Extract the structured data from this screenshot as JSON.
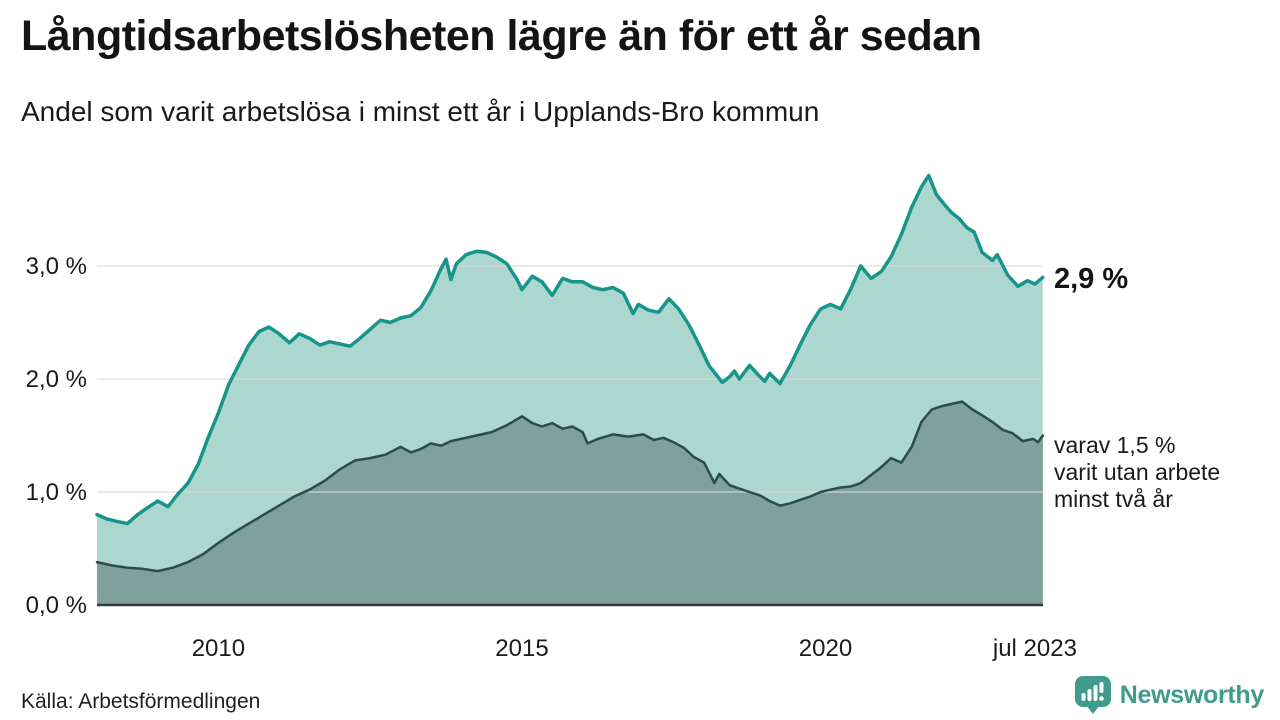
{
  "header": {
    "title": "Långtidsarbetslösheten lägre än för ett år sedan",
    "subtitle": "Andel som varit arbetslösa i minst ett år i Upplands-Bro kommun"
  },
  "annotations": {
    "total_end": "2,9 %",
    "secondary_end_lines": [
      "varav 1,5 %",
      "varit utan arbete",
      "minst två år"
    ]
  },
  "footer": {
    "source": "Källa: Arbetsförmedlingen",
    "brand": "Newsworthy"
  },
  "colors": {
    "total_line": "#17948b",
    "total_fill": "#abd7cf",
    "secondary_line": "#2d4c47",
    "secondary_fill": "#7ea19b",
    "gridline": "#d9d9d9",
    "axis_line": "#3a3a3a",
    "brand_teal": "#3f9c8d",
    "text": "#1a1a1a"
  },
  "chart_data": {
    "type": "area",
    "title": "Långtidsarbetslösheten lägre än för ett år sedan",
    "subtitle": "Andel som varit arbetslösa i minst ett år i Upplands-Bro kommun",
    "xlabel": "",
    "ylabel": "",
    "unit": "%",
    "x_range": [
      2008.0,
      2023.583
    ],
    "y_range": [
      0,
      3.94
    ],
    "grid": true,
    "legend_position": "end-of-line-labels",
    "y_ticks": [
      {
        "label": "0,0 %",
        "value": 0
      },
      {
        "label": "1,0 %",
        "value": 1
      },
      {
        "label": "2,0 %",
        "value": 2
      },
      {
        "label": "3,0 %",
        "value": 3
      }
    ],
    "x_ticks": [
      {
        "label": "2010",
        "year": 2010
      },
      {
        "label": "2015",
        "year": 2015
      },
      {
        "label": "2020",
        "year": 2020
      },
      {
        "label": "jul 2023",
        "year": 2023.45
      }
    ],
    "series": [
      {
        "name": "Andel som varit arbetslösa i minst ett år",
        "end_value": "2,9 %",
        "line_color": "#17948b",
        "fill_color": "#abd7cf",
        "line_width": 3.5,
        "points": [
          [
            2008.0,
            0.8
          ],
          [
            2008.17,
            0.76
          ],
          [
            2008.33,
            0.74
          ],
          [
            2008.5,
            0.72
          ],
          [
            2008.67,
            0.8
          ],
          [
            2008.83,
            0.86
          ],
          [
            2009.0,
            0.92
          ],
          [
            2009.17,
            0.87
          ],
          [
            2009.33,
            0.98
          ],
          [
            2009.5,
            1.08
          ],
          [
            2009.67,
            1.25
          ],
          [
            2009.83,
            1.48
          ],
          [
            2010.0,
            1.7
          ],
          [
            2010.17,
            1.95
          ],
          [
            2010.33,
            2.12
          ],
          [
            2010.5,
            2.3
          ],
          [
            2010.67,
            2.42
          ],
          [
            2010.83,
            2.46
          ],
          [
            2011.0,
            2.4
          ],
          [
            2011.17,
            2.32
          ],
          [
            2011.33,
            2.4
          ],
          [
            2011.5,
            2.36
          ],
          [
            2011.67,
            2.3
          ],
          [
            2011.83,
            2.33
          ],
          [
            2012.0,
            2.31
          ],
          [
            2012.17,
            2.29
          ],
          [
            2012.33,
            2.36
          ],
          [
            2012.5,
            2.44
          ],
          [
            2012.67,
            2.52
          ],
          [
            2012.83,
            2.5
          ],
          [
            2013.0,
            2.54
          ],
          [
            2013.17,
            2.56
          ],
          [
            2013.33,
            2.63
          ],
          [
            2013.5,
            2.78
          ],
          [
            2013.67,
            2.98
          ],
          [
            2013.75,
            3.06
          ],
          [
            2013.83,
            2.88
          ],
          [
            2013.92,
            3.02
          ],
          [
            2014.08,
            3.1
          ],
          [
            2014.25,
            3.13
          ],
          [
            2014.42,
            3.12
          ],
          [
            2014.58,
            3.08
          ],
          [
            2014.75,
            3.02
          ],
          [
            2014.92,
            2.88
          ],
          [
            2015.0,
            2.79
          ],
          [
            2015.17,
            2.91
          ],
          [
            2015.33,
            2.86
          ],
          [
            2015.5,
            2.74
          ],
          [
            2015.67,
            2.89
          ],
          [
            2015.83,
            2.86
          ],
          [
            2016.0,
            2.86
          ],
          [
            2016.17,
            2.81
          ],
          [
            2016.33,
            2.79
          ],
          [
            2016.5,
            2.81
          ],
          [
            2016.67,
            2.76
          ],
          [
            2016.83,
            2.58
          ],
          [
            2016.92,
            2.66
          ],
          [
            2017.08,
            2.61
          ],
          [
            2017.25,
            2.59
          ],
          [
            2017.42,
            2.71
          ],
          [
            2017.58,
            2.62
          ],
          [
            2017.75,
            2.48
          ],
          [
            2017.92,
            2.3
          ],
          [
            2018.08,
            2.12
          ],
          [
            2018.3,
            1.97
          ],
          [
            2018.42,
            2.02
          ],
          [
            2018.5,
            2.07
          ],
          [
            2018.58,
            2.0
          ],
          [
            2018.75,
            2.12
          ],
          [
            2018.92,
            2.02
          ],
          [
            2019.0,
            1.98
          ],
          [
            2019.08,
            2.05
          ],
          [
            2019.25,
            1.96
          ],
          [
            2019.42,
            2.12
          ],
          [
            2019.58,
            2.3
          ],
          [
            2019.75,
            2.48
          ],
          [
            2019.92,
            2.62
          ],
          [
            2020.08,
            2.66
          ],
          [
            2020.25,
            2.62
          ],
          [
            2020.42,
            2.8
          ],
          [
            2020.58,
            3.0
          ],
          [
            2020.75,
            2.89
          ],
          [
            2020.92,
            2.95
          ],
          [
            2021.08,
            3.08
          ],
          [
            2021.25,
            3.28
          ],
          [
            2021.42,
            3.52
          ],
          [
            2021.58,
            3.7
          ],
          [
            2021.7,
            3.8
          ],
          [
            2021.83,
            3.63
          ],
          [
            2021.95,
            3.55
          ],
          [
            2022.08,
            3.47
          ],
          [
            2022.2,
            3.42
          ],
          [
            2022.33,
            3.34
          ],
          [
            2022.45,
            3.3
          ],
          [
            2022.58,
            3.12
          ],
          [
            2022.75,
            3.05
          ],
          [
            2022.83,
            3.1
          ],
          [
            2023.0,
            2.92
          ],
          [
            2023.17,
            2.82
          ],
          [
            2023.33,
            2.87
          ],
          [
            2023.45,
            2.84
          ],
          [
            2023.58,
            2.9
          ]
        ]
      },
      {
        "name": "varav utan arbete minst två år",
        "end_value": "1,5 %",
        "line_color": "#2d4c47",
        "fill_color": "#7ea19b",
        "line_width": 2.5,
        "points": [
          [
            2008.0,
            0.38
          ],
          [
            2008.25,
            0.35
          ],
          [
            2008.5,
            0.33
          ],
          [
            2008.75,
            0.32
          ],
          [
            2009.0,
            0.3
          ],
          [
            2009.25,
            0.33
          ],
          [
            2009.5,
            0.38
          ],
          [
            2009.75,
            0.45
          ],
          [
            2010.0,
            0.55
          ],
          [
            2010.25,
            0.64
          ],
          [
            2010.5,
            0.72
          ],
          [
            2010.75,
            0.8
          ],
          [
            2011.0,
            0.88
          ],
          [
            2011.25,
            0.96
          ],
          [
            2011.5,
            1.02
          ],
          [
            2011.75,
            1.1
          ],
          [
            2012.0,
            1.2
          ],
          [
            2012.25,
            1.28
          ],
          [
            2012.5,
            1.3
          ],
          [
            2012.75,
            1.33
          ],
          [
            2013.0,
            1.4
          ],
          [
            2013.17,
            1.35
          ],
          [
            2013.33,
            1.38
          ],
          [
            2013.5,
            1.43
          ],
          [
            2013.67,
            1.41
          ],
          [
            2013.83,
            1.45
          ],
          [
            2014.0,
            1.47
          ],
          [
            2014.25,
            1.5
          ],
          [
            2014.5,
            1.53
          ],
          [
            2014.75,
            1.59
          ],
          [
            2015.0,
            1.67
          ],
          [
            2015.17,
            1.61
          ],
          [
            2015.33,
            1.58
          ],
          [
            2015.5,
            1.61
          ],
          [
            2015.67,
            1.56
          ],
          [
            2015.83,
            1.58
          ],
          [
            2016.0,
            1.53
          ],
          [
            2016.08,
            1.43
          ],
          [
            2016.25,
            1.47
          ],
          [
            2016.5,
            1.51
          ],
          [
            2016.75,
            1.49
          ],
          [
            2017.0,
            1.51
          ],
          [
            2017.17,
            1.46
          ],
          [
            2017.33,
            1.48
          ],
          [
            2017.5,
            1.44
          ],
          [
            2017.67,
            1.39
          ],
          [
            2017.83,
            1.31
          ],
          [
            2018.0,
            1.26
          ],
          [
            2018.17,
            1.08
          ],
          [
            2018.25,
            1.16
          ],
          [
            2018.42,
            1.06
          ],
          [
            2018.58,
            1.03
          ],
          [
            2018.75,
            1.0
          ],
          [
            2018.92,
            0.97
          ],
          [
            2019.08,
            0.92
          ],
          [
            2019.25,
            0.88
          ],
          [
            2019.42,
            0.9
          ],
          [
            2019.58,
            0.93
          ],
          [
            2019.75,
            0.96
          ],
          [
            2019.92,
            1.0
          ],
          [
            2020.08,
            1.02
          ],
          [
            2020.25,
            1.04
          ],
          [
            2020.42,
            1.05
          ],
          [
            2020.58,
            1.08
          ],
          [
            2020.75,
            1.15
          ],
          [
            2020.92,
            1.22
          ],
          [
            2021.08,
            1.3
          ],
          [
            2021.25,
            1.26
          ],
          [
            2021.42,
            1.4
          ],
          [
            2021.58,
            1.62
          ],
          [
            2021.75,
            1.73
          ],
          [
            2021.92,
            1.76
          ],
          [
            2022.08,
            1.78
          ],
          [
            2022.25,
            1.8
          ],
          [
            2022.42,
            1.73
          ],
          [
            2022.58,
            1.68
          ],
          [
            2022.75,
            1.62
          ],
          [
            2022.92,
            1.55
          ],
          [
            2023.08,
            1.52
          ],
          [
            2023.25,
            1.45
          ],
          [
            2023.42,
            1.47
          ],
          [
            2023.5,
            1.44
          ],
          [
            2023.58,
            1.5
          ]
        ]
      }
    ]
  }
}
